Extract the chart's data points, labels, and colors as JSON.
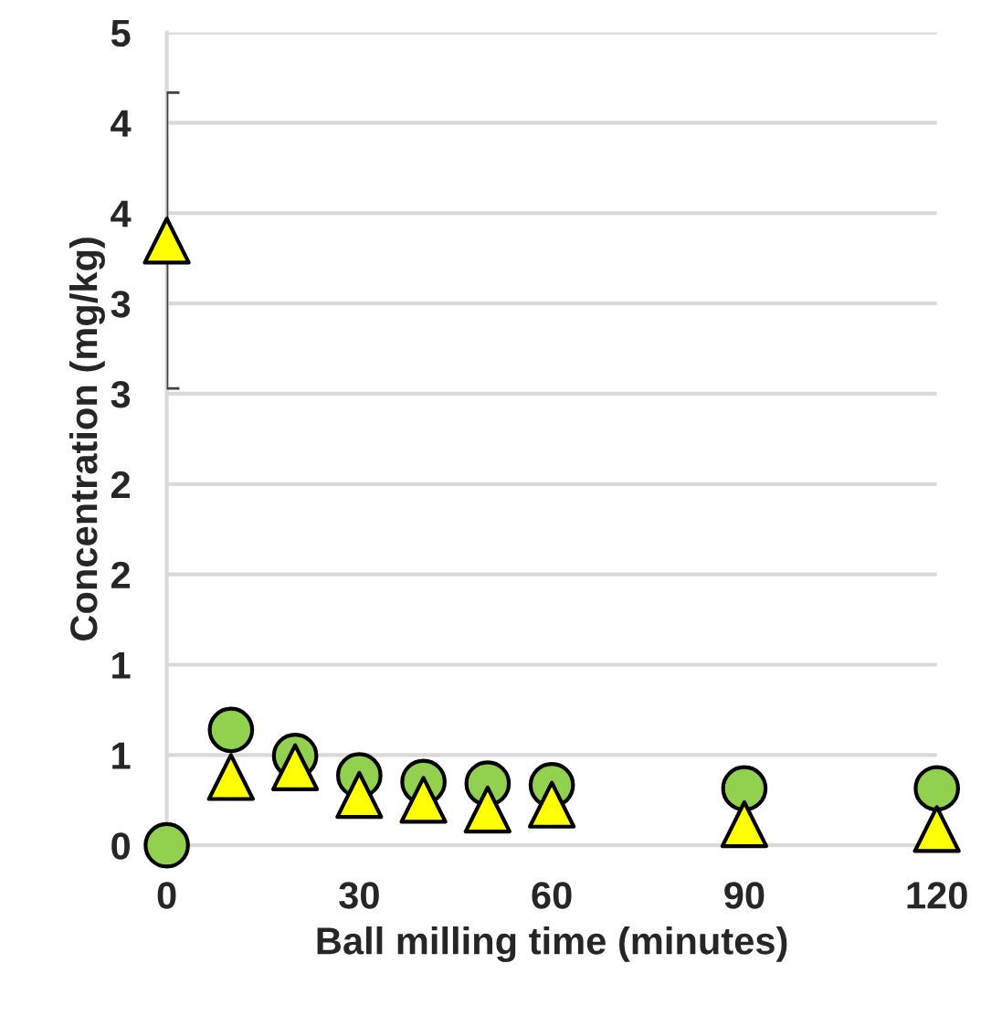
{
  "chart_data": {
    "type": "scatter",
    "xlabel": "Ball milling time (minutes)",
    "ylabel": "Concentration (mg/kg)",
    "x": [
      0,
      10,
      20,
      30,
      40,
      50,
      60,
      90,
      120
    ],
    "series": [
      {
        "color": "#92d050",
        "marker": "circle",
        "values": [
          0,
          0.71,
          0.55,
          0.43,
          0.39,
          0.38,
          0.37,
          0.35,
          0.35
        ]
      },
      {
        "color": "#ffff00",
        "marker": "triangle",
        "values": [
          3.72,
          0.42,
          0.48,
          0.31,
          0.28,
          0.22,
          0.25,
          0.13,
          0.1
        ],
        "errors": [
          0.91,
          null,
          null,
          null,
          null,
          null,
          null,
          null,
          null
        ]
      }
    ],
    "xlim": [
      0,
      120
    ],
    "xticks": [
      0,
      30,
      60,
      90,
      120
    ],
    "ylim": [
      0,
      5
    ],
    "yticks": [
      0,
      {
        "value": 0.5556,
        "label": "1"
      },
      {
        "value": 1.1111,
        "label": "1"
      },
      {
        "value": 1.6667,
        "label": "2"
      },
      {
        "value": 2.2222,
        "label": "2"
      },
      {
        "value": 2.7778,
        "label": "3"
      },
      {
        "value": 3.3333,
        "label": "3"
      },
      {
        "value": 3.8889,
        "label": "4"
      },
      {
        "value": 4.4444,
        "label": "4"
      },
      5
    ],
    "grid": "y",
    "legend": false
  }
}
